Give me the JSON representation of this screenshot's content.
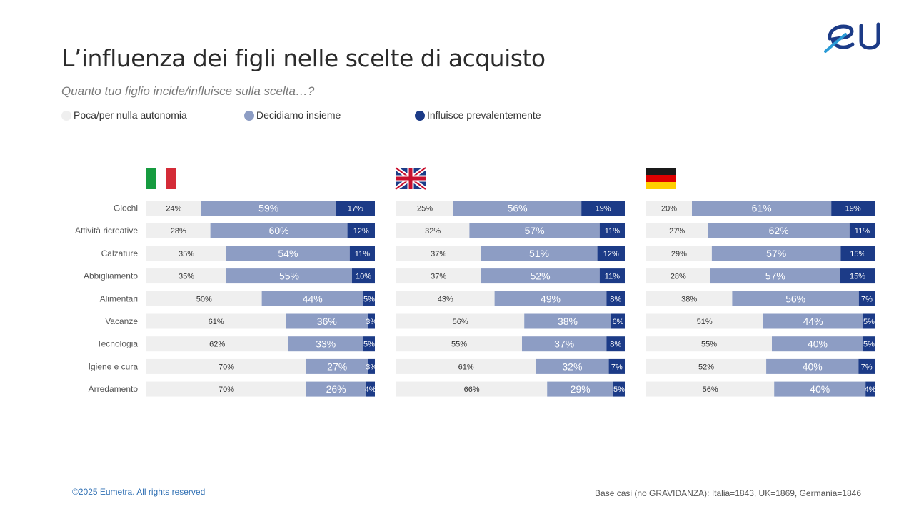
{
  "header": {
    "title": "L’influenza dei figli nelle scelte di acquisto",
    "subtitle": "Quanto tuo figlio incide/influisce sulla scelta…?",
    "logo_icon": "eu-logo-icon"
  },
  "colors": {
    "poca": "#efefef",
    "insieme": "#8d9dc4",
    "prevalente": "#1c3b87",
    "label_dark": "#333333",
    "label_light": "#ffffff"
  },
  "legend": [
    {
      "label": "Poca/per nulla autonomia",
      "color": "#efefef"
    },
    {
      "label": "Decidiamo insieme",
      "color": "#8d9dc4"
    },
    {
      "label": "Influisce prevalentemente",
      "color": "#1c3b87"
    }
  ],
  "chart_data": {
    "type": "bar",
    "orientation": "horizontal",
    "stacked": true,
    "normalized": true,
    "categories": [
      "Giochi",
      "Attività ricreative",
      "Calzature",
      "Abbigliamento",
      "Alimentari",
      "Vacanze",
      "Tecnologia",
      "Igiene e cura",
      "Arredamento"
    ],
    "panels": [
      {
        "flag_icon": "italy-flag-icon",
        "series": [
          {
            "name": "Poca/per nulla autonomia",
            "values": [
              24,
              28,
              35,
              35,
              50,
              61,
              62,
              70,
              70
            ]
          },
          {
            "name": "Decidiamo insieme",
            "values": [
              59,
              60,
              54,
              55,
              44,
              36,
              33,
              27,
              26
            ]
          },
          {
            "name": "Influisce prevalentemente",
            "values": [
              17,
              12,
              11,
              10,
              5,
              3,
              5,
              3,
              4
            ]
          }
        ]
      },
      {
        "flag_icon": "uk-flag-icon",
        "series": [
          {
            "name": "Poca/per nulla autonomia",
            "values": [
              25,
              32,
              37,
              37,
              43,
              56,
              55,
              61,
              66
            ]
          },
          {
            "name": "Decidiamo insieme",
            "values": [
              56,
              57,
              51,
              52,
              49,
              38,
              37,
              32,
              29
            ]
          },
          {
            "name": "Influisce prevalentemente",
            "values": [
              19,
              11,
              12,
              11,
              8,
              6,
              8,
              7,
              5
            ]
          }
        ]
      },
      {
        "flag_icon": "germany-flag-icon",
        "series": [
          {
            "name": "Poca/per nulla autonomia",
            "values": [
              20,
              27,
              29,
              28,
              38,
              51,
              55,
              52,
              56
            ]
          },
          {
            "name": "Decidiamo insieme",
            "values": [
              61,
              62,
              57,
              57,
              56,
              44,
              40,
              40,
              40
            ]
          },
          {
            "name": "Influisce prevalentemente",
            "values": [
              19,
              11,
              15,
              15,
              7,
              5,
              5,
              7,
              4
            ]
          }
        ]
      }
    ]
  },
  "footer": {
    "copyright": "©2025 Eumetra. All rights reserved",
    "base": "Base casi (no GRAVIDANZA): Italia=1843, UK=1869, Germania=1846"
  }
}
